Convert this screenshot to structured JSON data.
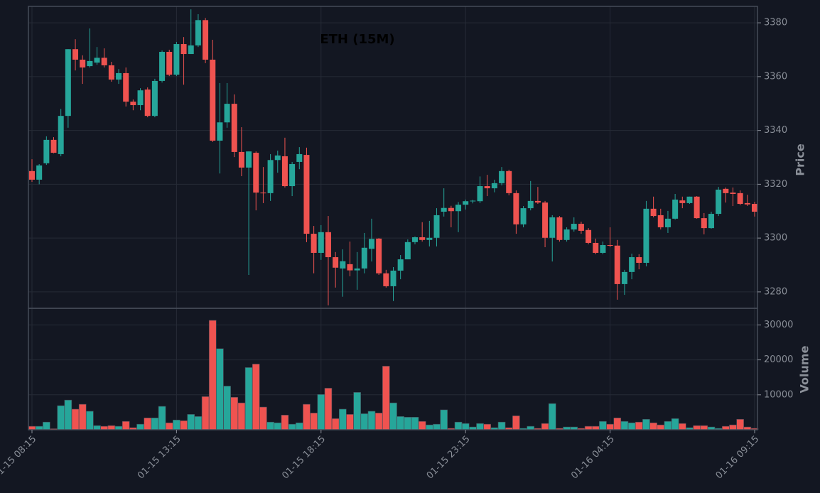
{
  "chart_data": [
    {
      "type": "candlestick",
      "title": "ETH (15M)",
      "ylabel": "Price",
      "categories": [
        "01-15 08:15",
        null,
        null,
        null,
        null,
        null,
        null,
        null,
        null,
        null,
        null,
        null,
        null,
        null,
        null,
        null,
        null,
        null,
        null,
        null,
        "01-15 13:15",
        null,
        null,
        null,
        null,
        null,
        null,
        null,
        null,
        null,
        null,
        null,
        null,
        null,
        null,
        null,
        null,
        null,
        null,
        null,
        "01-15 18:15",
        null,
        null,
        null,
        null,
        null,
        null,
        null,
        null,
        null,
        null,
        null,
        null,
        null,
        null,
        null,
        null,
        null,
        null,
        null,
        "01-15 23:15",
        null,
        null,
        null,
        null,
        null,
        null,
        null,
        null,
        null,
        null,
        null,
        null,
        null,
        null,
        null,
        null,
        null,
        null,
        null,
        "01-16 04:15",
        null,
        null,
        null,
        null,
        null,
        null,
        null,
        null,
        null,
        null,
        null,
        null,
        null,
        null,
        null,
        null,
        null,
        null,
        null,
        "01-16 09:15"
      ],
      "open": [
        3324.9,
        3321.7,
        3327.8,
        3336.5,
        3331.2,
        3345.4,
        3370.2,
        3366.3,
        3363.9,
        3365.2,
        3367,
        3364.2,
        3358.9,
        3361.3,
        3350.7,
        3349.4,
        3355.2,
        3345.4,
        3358.4,
        3369.2,
        3360.7,
        3372.1,
        3368.4,
        3371.6,
        3381,
        3366.3,
        3336.2,
        3343,
        3349.9,
        3332,
        3326.2,
        3331.7,
        3316.9,
        3316.7,
        3329,
        3330.4,
        3319.3,
        3328.3,
        3330.9,
        3301.6,
        3294.5,
        3302.2,
        3292.9,
        3288.7,
        3290.3,
        3288,
        3288.7,
        3296,
        3299.8,
        3286.9,
        3282.1,
        3287.9,
        3292.1,
        3298.5,
        3300.3,
        3299.3,
        3300.1,
        3309.8,
        3311.2,
        3310,
        3312.4,
        3313.7,
        3313.7,
        3319.3,
        3318.5,
        3320.4,
        3324.9,
        3316.7,
        3305.1,
        3311.1,
        3313.8,
        3313.2,
        3300.1,
        3307.7,
        3299.3,
        3303.2,
        3305.3,
        3303,
        3298.2,
        3294.5,
        3297.4,
        3297.2,
        3282.9,
        3287.4,
        3292.9,
        3290.8,
        3310.9,
        3308.5,
        3304,
        3307.2,
        3314,
        3313,
        3315.4,
        3307.4,
        3303.7,
        3309,
        3318.3,
        3316.9,
        3316.7,
        3313,
        3312.7
      ],
      "high": [
        3329.3,
        3327.5,
        3337.8,
        3337.5,
        3348,
        3370.2,
        3373.9,
        3367.9,
        3377.9,
        3371,
        3370.5,
        3365.5,
        3362.8,
        3363.4,
        3351.5,
        3355.7,
        3356,
        3359.2,
        3369.7,
        3370,
        3372.9,
        3374.7,
        3385,
        3383.2,
        3381.8,
        3373.7,
        3357.6,
        3357.6,
        3353.4,
        3341.2,
        3332.2,
        3332.2,
        3326.4,
        3331.2,
        3332.5,
        3337.3,
        3328.3,
        3333.8,
        3333.6,
        3304.5,
        3304.8,
        3308.2,
        3294.8,
        3295.8,
        3298.7,
        3294.8,
        3301.9,
        3307.2,
        3300,
        3288.2,
        3289.2,
        3293.7,
        3299.5,
        3300.6,
        3305.9,
        3306.4,
        3311.1,
        3318.5,
        3312,
        3313.4,
        3314.3,
        3314.2,
        3322.9,
        3323.5,
        3321.7,
        3326.4,
        3325.4,
        3317.7,
        3311.9,
        3321.2,
        3319,
        3313.8,
        3308.5,
        3308.2,
        3304,
        3307.7,
        3306.1,
        3303.7,
        3299.8,
        3298.7,
        3304,
        3299.3,
        3288.2,
        3294.2,
        3294,
        3313.8,
        3315.4,
        3310.9,
        3310.1,
        3316.4,
        3315.4,
        3315.4,
        3315.6,
        3309.3,
        3309.8,
        3319,
        3318.8,
        3318.8,
        3317.7,
        3316.1,
        3313.5
      ],
      "low": [
        3320.9,
        3320,
        3327.2,
        3331.5,
        3330.4,
        3341,
        3362.3,
        3357.3,
        3363.4,
        3364.4,
        3363.4,
        3358.1,
        3357.3,
        3348.9,
        3347.5,
        3347.5,
        3344.9,
        3344.9,
        3357.8,
        3360.2,
        3360.2,
        3357,
        3368.4,
        3371,
        3365,
        3335.7,
        3324,
        3341,
        3330.1,
        3323,
        3286.3,
        3310.3,
        3313,
        3313.8,
        3324.3,
        3318.8,
        3315.6,
        3325.6,
        3298.5,
        3286.9,
        3291.9,
        3275,
        3281.6,
        3278.2,
        3285.8,
        3280.8,
        3286.9,
        3291.3,
        3286.3,
        3281.6,
        3276.6,
        3284.7,
        3292.1,
        3297.7,
        3298.7,
        3296.9,
        3296.9,
        3308,
        3304,
        3302.2,
        3310.6,
        3312.9,
        3313,
        3315.6,
        3317,
        3319.6,
        3315.9,
        3301.6,
        3304,
        3310.3,
        3312.7,
        3296.6,
        3291.3,
        3298.7,
        3298.7,
        3302.4,
        3301.6,
        3297.7,
        3294,
        3294,
        3296.6,
        3277.1,
        3278.9,
        3284.7,
        3288.4,
        3289.5,
        3307.7,
        3303.2,
        3301.9,
        3306.9,
        3311.1,
        3312.7,
        3307.2,
        3301.4,
        3303.5,
        3308.2,
        3313.2,
        3311.9,
        3312.2,
        3311.9,
        3308
      ],
      "close": [
        3321.7,
        3327,
        3336.5,
        3331.7,
        3345.4,
        3370.2,
        3366.3,
        3363.4,
        3365.8,
        3367,
        3364.2,
        3358.9,
        3361.3,
        3350.7,
        3349.4,
        3354.9,
        3345.4,
        3358.4,
        3369.2,
        3360.7,
        3372.1,
        3368.4,
        3371.6,
        3381,
        3366.3,
        3336.2,
        3343,
        3349.9,
        3332,
        3326.2,
        3332.2,
        3316.9,
        3316.7,
        3329,
        3330.7,
        3319.3,
        3327.5,
        3331.2,
        3301.6,
        3294.5,
        3302.2,
        3292.9,
        3289,
        3291.4,
        3288,
        3288.7,
        3296.4,
        3299.7,
        3286.9,
        3282.1,
        3287.9,
        3292.1,
        3298.5,
        3300.3,
        3299.3,
        3300.1,
        3308.5,
        3311.2,
        3310,
        3312.4,
        3313.7,
        3313.9,
        3319.3,
        3318.5,
        3320.4,
        3324.9,
        3316.7,
        3305.1,
        3311.1,
        3313.8,
        3313.2,
        3300.1,
        3307.7,
        3299.3,
        3303.2,
        3305.3,
        3302.7,
        3298.2,
        3294.5,
        3297.4,
        3297.2,
        3282.9,
        3287.4,
        3292.9,
        3290.8,
        3310.9,
        3308.2,
        3304,
        3307.2,
        3314.3,
        3313,
        3315.4,
        3307.4,
        3303.7,
        3309,
        3318,
        3316.7,
        3316.4,
        3312.7,
        3312.5,
        3309.8
      ],
      "up_color": "#26a69a",
      "down_color": "#ef5350",
      "ylim": [
        3273.9,
        3386.1
      ],
      "yticks": [
        3280,
        3300,
        3320,
        3340,
        3360,
        3380
      ],
      "grid": true
    },
    {
      "type": "bar",
      "ylabel": "Volume",
      "values": [
        1000,
        1000,
        2200,
        300,
        6900,
        8500,
        5900,
        7300,
        5300,
        1200,
        1000,
        1200,
        1000,
        2400,
        600,
        1600,
        3400,
        3400,
        6700,
        2000,
        2800,
        2600,
        4400,
        3800,
        9500,
        31300,
        23200,
        12500,
        9300,
        7700,
        17800,
        18800,
        6500,
        2200,
        2000,
        4200,
        1600,
        2000,
        7300,
        4800,
        10100,
        11900,
        3200,
        5900,
        4400,
        10700,
        4600,
        5300,
        4800,
        18200,
        7700,
        3800,
        3600,
        3600,
        2400,
        1400,
        1600,
        5700,
        400,
        2200,
        1800,
        800,
        1800,
        1600,
        600,
        2200,
        600,
        4000,
        400,
        1000,
        400,
        1800,
        7500,
        400,
        800,
        800,
        400,
        1000,
        1000,
        2400,
        1600,
        3400,
        2400,
        2000,
        2200,
        3000,
        2000,
        1400,
        2400,
        3200,
        1800,
        600,
        1200,
        1200,
        800,
        400,
        1000,
        1400,
        3000,
        800,
        400
      ],
      "ylim": [
        0,
        34750
      ],
      "yticks": [
        10000,
        20000,
        30000
      ],
      "grid": true
    }
  ]
}
